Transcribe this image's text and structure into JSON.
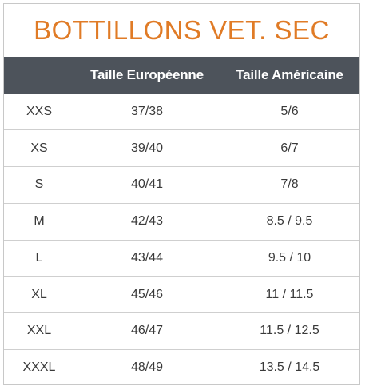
{
  "title": "BOTTILLONS VET. SEC",
  "columns": [
    "",
    "Taille Européenne",
    "Taille Américaine"
  ],
  "rows": [
    [
      "XXS",
      "37/38",
      "5/6"
    ],
    [
      "XS",
      "39/40",
      "6/7"
    ],
    [
      "S",
      "40/41",
      "7/8"
    ],
    [
      "M",
      "42/43",
      "8.5 / 9.5"
    ],
    [
      "L",
      "43/44",
      "9.5 / 10"
    ],
    [
      "XL",
      "45/46",
      "11 / 11.5"
    ],
    [
      "XXL",
      "46/47",
      "11.5 / 12.5"
    ],
    [
      "XXXL",
      "48/49",
      "13.5 / 14.5"
    ]
  ],
  "colors": {
    "title": "#e07b26",
    "header_bg": "#4d535b",
    "header_text": "#ffffff",
    "cell_text": "#3a3a3a",
    "divider": "#cfcfcf"
  }
}
